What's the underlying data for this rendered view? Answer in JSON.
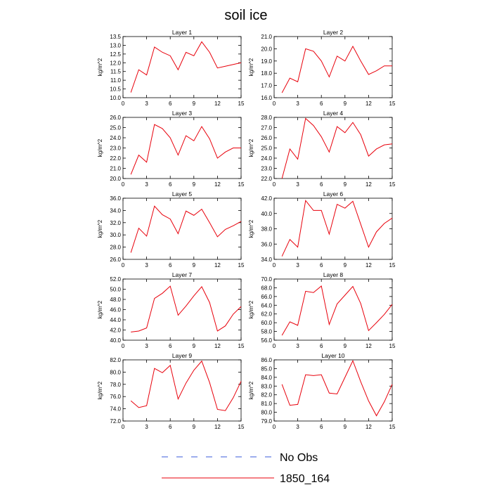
{
  "figure": {
    "title": "soil ice"
  },
  "legend": [
    {
      "label": "No Obs",
      "color": "#3b5bdb",
      "dash": true
    },
    {
      "label": "1850_164",
      "color": "#e8000b",
      "dash": false
    }
  ],
  "chart_data": [
    {
      "type": "line",
      "title": "Layer 1",
      "ylabel": "kg/m^2",
      "xlim": [
        0,
        15
      ],
      "ylim": [
        10.0,
        13.5
      ],
      "xticks": [
        0,
        3,
        6,
        9,
        12,
        15
      ],
      "yticks": [
        10.0,
        10.5,
        11.0,
        11.5,
        12.0,
        12.5,
        13.0,
        13.5
      ],
      "series": [
        {
          "color": "#e8000b",
          "x": [
            1,
            2,
            3,
            4,
            5,
            6,
            7,
            8,
            9,
            10,
            11,
            12,
            13,
            14,
            15
          ],
          "y": [
            10.3,
            11.6,
            11.3,
            12.9,
            12.6,
            12.4,
            11.6,
            12.6,
            12.4,
            13.2,
            12.6,
            11.7,
            11.8,
            11.9,
            12.0
          ]
        }
      ]
    },
    {
      "type": "line",
      "title": "Layer 2",
      "ylabel": "kg/m^2",
      "xlim": [
        0,
        15
      ],
      "ylim": [
        16.0,
        21.0
      ],
      "xticks": [
        0,
        3,
        6,
        9,
        12,
        15
      ],
      "yticks": [
        16.0,
        17.0,
        18.0,
        19.0,
        20.0,
        21.0
      ],
      "series": [
        {
          "color": "#e8000b",
          "x": [
            1,
            2,
            3,
            4,
            5,
            6,
            7,
            8,
            9,
            10,
            11,
            12,
            13,
            14,
            15
          ],
          "y": [
            16.4,
            17.6,
            17.3,
            20.0,
            19.8,
            19.0,
            17.7,
            19.4,
            19.0,
            20.2,
            19.0,
            17.9,
            18.2,
            18.6,
            18.6
          ]
        }
      ]
    },
    {
      "type": "line",
      "title": "Layer 3",
      "ylabel": "kg/m^2",
      "xlim": [
        0,
        15
      ],
      "ylim": [
        20.0,
        26.0
      ],
      "xticks": [
        0,
        3,
        6,
        9,
        12,
        15
      ],
      "yticks": [
        20.0,
        21.0,
        22.0,
        23.0,
        24.0,
        25.0,
        26.0
      ],
      "series": [
        {
          "color": "#e8000b",
          "x": [
            1,
            2,
            3,
            4,
            5,
            6,
            7,
            8,
            9,
            10,
            11,
            12,
            13,
            14,
            15
          ],
          "y": [
            20.4,
            22.3,
            21.6,
            25.3,
            24.9,
            24.0,
            22.3,
            24.2,
            23.7,
            25.1,
            23.9,
            22.0,
            22.6,
            23.0,
            23.0
          ]
        }
      ]
    },
    {
      "type": "line",
      "title": "Layer 4",
      "ylabel": "kg/m^2",
      "xlim": [
        0,
        15
      ],
      "ylim": [
        22.0,
        28.0
      ],
      "xticks": [
        0,
        3,
        6,
        9,
        12,
        15
      ],
      "yticks": [
        22.0,
        23.0,
        24.0,
        25.0,
        26.0,
        27.0,
        28.0
      ],
      "series": [
        {
          "color": "#e8000b",
          "x": [
            1,
            2,
            3,
            4,
            5,
            6,
            7,
            8,
            9,
            10,
            11,
            12,
            13,
            14,
            15
          ],
          "y": [
            22.0,
            24.9,
            23.9,
            27.9,
            27.2,
            26.1,
            24.6,
            27.1,
            26.5,
            27.5,
            26.3,
            24.2,
            24.9,
            25.3,
            25.4
          ]
        }
      ]
    },
    {
      "type": "line",
      "title": "Layer 5",
      "ylabel": "kg/m^2",
      "xlim": [
        0,
        15
      ],
      "ylim": [
        26.0,
        36.0
      ],
      "xticks": [
        0,
        3,
        6,
        9,
        12,
        15
      ],
      "yticks": [
        26.0,
        28.0,
        30.0,
        32.0,
        34.0,
        36.0
      ],
      "series": [
        {
          "color": "#e8000b",
          "x": [
            1,
            2,
            3,
            4,
            5,
            6,
            7,
            8,
            9,
            10,
            11,
            12,
            13,
            14,
            15
          ],
          "y": [
            27.1,
            31.1,
            29.8,
            34.7,
            33.3,
            32.6,
            30.2,
            33.9,
            33.2,
            34.2,
            32.0,
            29.7,
            30.9,
            31.5,
            32.2
          ]
        }
      ]
    },
    {
      "type": "line",
      "title": "Layer 6",
      "ylabel": "kg/m^2",
      "xlim": [
        0,
        15
      ],
      "ylim": [
        34.0,
        42.0
      ],
      "xticks": [
        0,
        3,
        6,
        9,
        12,
        15
      ],
      "yticks": [
        34.0,
        36.0,
        38.0,
        40.0,
        42.0
      ],
      "series": [
        {
          "color": "#e8000b",
          "x": [
            1,
            2,
            3,
            4,
            5,
            6,
            7,
            8,
            9,
            10,
            11,
            12,
            13,
            14,
            15
          ],
          "y": [
            34.4,
            36.6,
            35.6,
            41.7,
            40.4,
            40.4,
            37.3,
            41.2,
            40.7,
            41.6,
            38.6,
            35.6,
            37.6,
            38.7,
            39.4
          ]
        }
      ]
    },
    {
      "type": "line",
      "title": "Layer 7",
      "ylabel": "kg/m^2",
      "xlim": [
        0,
        15
      ],
      "ylim": [
        40.0,
        52.0
      ],
      "xticks": [
        0,
        3,
        6,
        9,
        12,
        15
      ],
      "yticks": [
        40.0,
        42.0,
        44.0,
        46.0,
        48.0,
        50.0,
        52.0
      ],
      "series": [
        {
          "color": "#e8000b",
          "x": [
            1,
            2,
            3,
            4,
            5,
            6,
            7,
            8,
            9,
            10,
            11,
            12,
            13,
            14,
            15
          ],
          "y": [
            41.6,
            41.8,
            42.4,
            48.2,
            49.2,
            50.6,
            44.9,
            46.7,
            48.7,
            50.5,
            47.4,
            41.8,
            42.8,
            45.1,
            46.6
          ]
        }
      ]
    },
    {
      "type": "line",
      "title": "Layer 8",
      "ylabel": "kg/m^2",
      "xlim": [
        0,
        15
      ],
      "ylim": [
        56.0,
        70.0
      ],
      "xticks": [
        0,
        3,
        6,
        9,
        12,
        15
      ],
      "yticks": [
        56.0,
        58.0,
        60.0,
        62.0,
        64.0,
        66.0,
        68.0,
        70.0
      ],
      "series": [
        {
          "color": "#e8000b",
          "x": [
            1,
            2,
            3,
            4,
            5,
            6,
            7,
            8,
            9,
            10,
            11,
            12,
            13,
            14,
            15
          ],
          "y": [
            57.1,
            60.2,
            59.4,
            67.2,
            66.9,
            68.4,
            59.6,
            64.3,
            66.3,
            68.3,
            64.4,
            58.2,
            60.0,
            61.9,
            64.2
          ]
        }
      ]
    },
    {
      "type": "line",
      "title": "Layer 9",
      "ylabel": "kg/m^2",
      "xlim": [
        0,
        15
      ],
      "ylim": [
        72.0,
        82.0
      ],
      "xticks": [
        0,
        3,
        6,
        9,
        12,
        15
      ],
      "yticks": [
        72.0,
        74.0,
        76.0,
        78.0,
        80.0,
        82.0
      ],
      "series": [
        {
          "color": "#e8000b",
          "x": [
            1,
            2,
            3,
            4,
            5,
            6,
            7,
            8,
            9,
            10,
            11,
            12,
            13,
            14,
            15
          ],
          "y": [
            75.3,
            74.2,
            74.5,
            80.6,
            79.9,
            81.1,
            75.6,
            78.2,
            80.3,
            81.8,
            78.3,
            73.9,
            73.7,
            75.8,
            78.5
          ]
        }
      ]
    },
    {
      "type": "line",
      "title": "Layer 10",
      "ylabel": "kg/m^2",
      "xlim": [
        0,
        15
      ],
      "ylim": [
        79.0,
        86.0
      ],
      "xticks": [
        0,
        3,
        6,
        9,
        12,
        15
      ],
      "yticks": [
        79.0,
        80.0,
        81.0,
        82.0,
        83.0,
        84.0,
        85.0,
        86.0
      ],
      "series": [
        {
          "color": "#e8000b",
          "x": [
            1,
            2,
            3,
            4,
            5,
            6,
            7,
            8,
            9,
            10,
            11,
            12,
            13,
            14,
            15
          ],
          "y": [
            83.2,
            80.8,
            80.9,
            84.3,
            84.2,
            84.3,
            82.2,
            82.1,
            84.0,
            85.9,
            83.5,
            81.3,
            79.6,
            81.2,
            83.2
          ]
        }
      ]
    }
  ]
}
